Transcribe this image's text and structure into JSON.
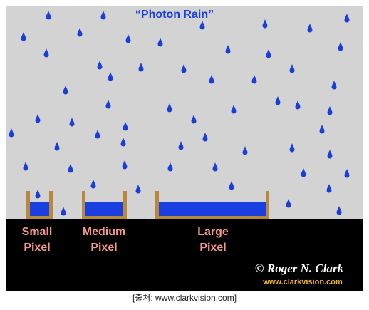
{
  "title": "“Photon Rain”",
  "pixels": [
    {
      "line1": "Small",
      "line2": "Pixel"
    },
    {
      "line1": "Medium",
      "line2": "Pixel"
    },
    {
      "line1": "Large",
      "line2": "Pixel"
    }
  ],
  "copyright": "© Roger N. Clark",
  "website": "www.clarkvision.com",
  "caption": "[출처: www.clarkvision.com]"
}
